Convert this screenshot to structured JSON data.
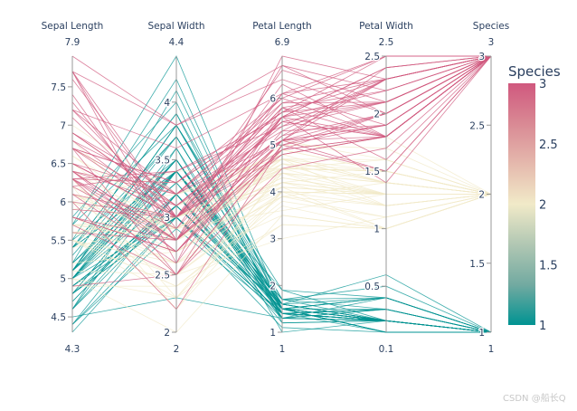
{
  "chart_data": {
    "type": "parallel_coordinates",
    "colorscale_name": "tealrose",
    "colorscale": [
      "#009392",
      "#72aaa1",
      "#b1c7b3",
      "#f1eac8",
      "#e5b9ad",
      "#d98994",
      "#d0587e"
    ],
    "color_by": "Species",
    "colorbar": {
      "title": "Species",
      "range": [
        1,
        3
      ],
      "ticks": [
        1,
        1.5,
        2,
        2.5,
        3
      ]
    },
    "dimensions": [
      {
        "label": "Sepal Length",
        "range": [
          4.3,
          7.9
        ],
        "ticks": [
          4.5,
          5,
          5.5,
          6,
          6.5,
          7,
          7.5
        ],
        "min_label": "4.3",
        "max_label": "7.9"
      },
      {
        "label": "Sepal Width",
        "range": [
          2,
          4.4
        ],
        "ticks": [
          2,
          2.5,
          3,
          3.5,
          4
        ],
        "min_label": "2",
        "max_label": "4.4"
      },
      {
        "label": "Petal Length",
        "range": [
          1,
          6.9
        ],
        "ticks": [
          1,
          2,
          3,
          4,
          5,
          6
        ],
        "min_label": "1",
        "max_label": "6.9"
      },
      {
        "label": "Petal Width",
        "range": [
          0.1,
          2.5
        ],
        "ticks": [
          0.5,
          1,
          1.5,
          2,
          2.5
        ],
        "min_label": "0.1",
        "max_label": "2.5"
      },
      {
        "label": "Species",
        "range": [
          1,
          3
        ],
        "ticks": [
          1,
          1.5,
          2,
          2.5,
          3
        ],
        "min_label": "1",
        "max_label": "3"
      }
    ],
    "rows": [
      [
        5.1,
        3.5,
        1.4,
        0.2,
        1
      ],
      [
        4.9,
        3.0,
        1.4,
        0.2,
        1
      ],
      [
        4.7,
        3.2,
        1.3,
        0.2,
        1
      ],
      [
        4.6,
        3.1,
        1.5,
        0.2,
        1
      ],
      [
        5.0,
        3.6,
        1.4,
        0.2,
        1
      ],
      [
        5.4,
        3.9,
        1.7,
        0.4,
        1
      ],
      [
        4.6,
        3.4,
        1.4,
        0.3,
        1
      ],
      [
        5.0,
        3.4,
        1.5,
        0.2,
        1
      ],
      [
        4.4,
        2.9,
        1.4,
        0.2,
        1
      ],
      [
        4.9,
        3.1,
        1.5,
        0.1,
        1
      ],
      [
        5.4,
        3.7,
        1.5,
        0.2,
        1
      ],
      [
        4.8,
        3.4,
        1.6,
        0.2,
        1
      ],
      [
        4.8,
        3.0,
        1.4,
        0.1,
        1
      ],
      [
        4.3,
        3.0,
        1.1,
        0.1,
        1
      ],
      [
        5.8,
        4.0,
        1.2,
        0.2,
        1
      ],
      [
        5.7,
        4.4,
        1.5,
        0.4,
        1
      ],
      [
        5.4,
        3.9,
        1.3,
        0.4,
        1
      ],
      [
        5.1,
        3.5,
        1.4,
        0.3,
        1
      ],
      [
        5.7,
        3.8,
        1.7,
        0.3,
        1
      ],
      [
        5.1,
        3.8,
        1.5,
        0.3,
        1
      ],
      [
        5.4,
        3.4,
        1.7,
        0.2,
        1
      ],
      [
        5.1,
        3.7,
        1.5,
        0.4,
        1
      ],
      [
        4.6,
        3.6,
        1.0,
        0.2,
        1
      ],
      [
        5.1,
        3.3,
        1.7,
        0.5,
        1
      ],
      [
        4.8,
        3.4,
        1.9,
        0.2,
        1
      ],
      [
        5.0,
        3.0,
        1.6,
        0.2,
        1
      ],
      [
        5.0,
        3.4,
        1.6,
        0.4,
        1
      ],
      [
        5.2,
        3.5,
        1.5,
        0.2,
        1
      ],
      [
        5.2,
        3.4,
        1.4,
        0.2,
        1
      ],
      [
        4.7,
        3.2,
        1.6,
        0.2,
        1
      ],
      [
        4.8,
        3.1,
        1.6,
        0.2,
        1
      ],
      [
        5.4,
        3.4,
        1.5,
        0.4,
        1
      ],
      [
        5.2,
        4.1,
        1.5,
        0.1,
        1
      ],
      [
        5.5,
        4.2,
        1.4,
        0.2,
        1
      ],
      [
        4.9,
        3.1,
        1.5,
        0.1,
        1
      ],
      [
        5.0,
        3.2,
        1.2,
        0.2,
        1
      ],
      [
        5.5,
        3.5,
        1.3,
        0.2,
        1
      ],
      [
        4.9,
        3.1,
        1.5,
        0.1,
        1
      ],
      [
        4.4,
        3.0,
        1.3,
        0.2,
        1
      ],
      [
        5.1,
        3.4,
        1.5,
        0.2,
        1
      ],
      [
        5.0,
        3.5,
        1.3,
        0.3,
        1
      ],
      [
        4.5,
        2.3,
        1.3,
        0.3,
        1
      ],
      [
        4.4,
        3.2,
        1.3,
        0.2,
        1
      ],
      [
        5.0,
        3.5,
        1.6,
        0.6,
        1
      ],
      [
        5.1,
        3.8,
        1.9,
        0.4,
        1
      ],
      [
        4.8,
        3.0,
        1.4,
        0.3,
        1
      ],
      [
        5.1,
        3.8,
        1.6,
        0.2,
        1
      ],
      [
        4.6,
        3.2,
        1.4,
        0.2,
        1
      ],
      [
        5.3,
        3.7,
        1.5,
        0.2,
        1
      ],
      [
        5.0,
        3.3,
        1.4,
        0.2,
        1
      ],
      [
        7.0,
        3.2,
        4.7,
        1.4,
        2
      ],
      [
        6.4,
        3.2,
        4.5,
        1.5,
        2
      ],
      [
        6.9,
        3.1,
        4.9,
        1.5,
        2
      ],
      [
        5.5,
        2.3,
        4.0,
        1.3,
        2
      ],
      [
        6.5,
        2.8,
        4.6,
        1.5,
        2
      ],
      [
        5.7,
        2.8,
        4.5,
        1.3,
        2
      ],
      [
        6.3,
        3.3,
        4.7,
        1.6,
        2
      ],
      [
        4.9,
        2.4,
        3.3,
        1.0,
        2
      ],
      [
        6.6,
        2.9,
        4.6,
        1.3,
        2
      ],
      [
        5.2,
        2.7,
        3.9,
        1.4,
        2
      ],
      [
        5.0,
        2.0,
        3.5,
        1.0,
        2
      ],
      [
        5.9,
        3.0,
        4.2,
        1.5,
        2
      ],
      [
        6.0,
        2.2,
        4.0,
        1.0,
        2
      ],
      [
        6.1,
        2.9,
        4.7,
        1.4,
        2
      ],
      [
        5.6,
        2.9,
        3.6,
        1.3,
        2
      ],
      [
        6.7,
        3.1,
        4.4,
        1.4,
        2
      ],
      [
        5.6,
        3.0,
        4.5,
        1.5,
        2
      ],
      [
        5.8,
        2.7,
        4.1,
        1.0,
        2
      ],
      [
        6.2,
        2.2,
        4.5,
        1.5,
        2
      ],
      [
        5.6,
        2.5,
        3.9,
        1.1,
        2
      ],
      [
        5.9,
        3.2,
        4.8,
        1.8,
        2
      ],
      [
        6.1,
        2.8,
        4.0,
        1.3,
        2
      ],
      [
        6.3,
        2.5,
        4.9,
        1.5,
        2
      ],
      [
        6.1,
        2.8,
        4.7,
        1.2,
        2
      ],
      [
        6.4,
        2.9,
        4.3,
        1.3,
        2
      ],
      [
        6.6,
        3.0,
        4.4,
        1.4,
        2
      ],
      [
        6.8,
        2.8,
        4.8,
        1.4,
        2
      ],
      [
        6.7,
        3.0,
        5.0,
        1.7,
        2
      ],
      [
        6.0,
        2.9,
        4.5,
        1.5,
        2
      ],
      [
        5.7,
        2.6,
        3.5,
        1.0,
        2
      ],
      [
        5.5,
        2.4,
        3.8,
        1.1,
        2
      ],
      [
        5.5,
        2.4,
        3.7,
        1.0,
        2
      ],
      [
        5.8,
        2.7,
        3.9,
        1.2,
        2
      ],
      [
        6.0,
        2.7,
        5.1,
        1.6,
        2
      ],
      [
        5.4,
        3.0,
        4.5,
        1.5,
        2
      ],
      [
        6.0,
        3.4,
        4.5,
        1.6,
        2
      ],
      [
        6.7,
        3.1,
        4.7,
        1.5,
        2
      ],
      [
        6.3,
        2.3,
        4.4,
        1.3,
        2
      ],
      [
        5.6,
        3.0,
        4.1,
        1.3,
        2
      ],
      [
        5.5,
        2.5,
        4.0,
        1.3,
        2
      ],
      [
        5.5,
        2.6,
        4.4,
        1.2,
        2
      ],
      [
        6.1,
        3.0,
        4.6,
        1.4,
        2
      ],
      [
        5.8,
        2.6,
        4.0,
        1.2,
        2
      ],
      [
        5.0,
        2.3,
        3.3,
        1.0,
        2
      ],
      [
        5.6,
        2.7,
        4.2,
        1.3,
        2
      ],
      [
        5.7,
        3.0,
        4.2,
        1.2,
        2
      ],
      [
        5.7,
        2.9,
        4.2,
        1.3,
        2
      ],
      [
        6.2,
        2.9,
        4.3,
        1.3,
        2
      ],
      [
        5.1,
        2.5,
        3.0,
        1.1,
        2
      ],
      [
        5.7,
        2.8,
        4.1,
        1.3,
        2
      ],
      [
        6.3,
        3.3,
        6.0,
        2.5,
        3
      ],
      [
        5.8,
        2.7,
        5.1,
        1.9,
        3
      ],
      [
        7.1,
        3.0,
        5.9,
        2.1,
        3
      ],
      [
        6.3,
        2.9,
        5.6,
        1.8,
        3
      ],
      [
        6.5,
        3.0,
        5.8,
        2.2,
        3
      ],
      [
        7.6,
        3.0,
        6.6,
        2.1,
        3
      ],
      [
        4.9,
        2.5,
        4.5,
        1.7,
        3
      ],
      [
        7.3,
        2.9,
        6.3,
        1.8,
        3
      ],
      [
        6.7,
        2.5,
        5.8,
        1.8,
        3
      ],
      [
        7.2,
        3.6,
        6.1,
        2.5,
        3
      ],
      [
        6.5,
        3.2,
        5.1,
        2.0,
        3
      ],
      [
        6.4,
        2.7,
        5.3,
        1.9,
        3
      ],
      [
        6.8,
        3.0,
        5.5,
        2.1,
        3
      ],
      [
        5.7,
        2.5,
        5.0,
        2.0,
        3
      ],
      [
        5.8,
        2.8,
        5.1,
        2.4,
        3
      ],
      [
        6.4,
        3.2,
        5.3,
        2.3,
        3
      ],
      [
        6.5,
        3.0,
        5.5,
        1.8,
        3
      ],
      [
        7.7,
        3.8,
        6.7,
        2.2,
        3
      ],
      [
        7.7,
        2.6,
        6.9,
        2.3,
        3
      ],
      [
        6.0,
        2.2,
        5.0,
        1.5,
        3
      ],
      [
        6.9,
        3.2,
        5.7,
        2.3,
        3
      ],
      [
        5.6,
        2.8,
        4.9,
        2.0,
        3
      ],
      [
        7.7,
        2.8,
        6.7,
        2.0,
        3
      ],
      [
        6.3,
        2.7,
        4.9,
        1.8,
        3
      ],
      [
        6.7,
        3.3,
        5.7,
        2.1,
        3
      ],
      [
        7.2,
        3.2,
        6.0,
        1.8,
        3
      ],
      [
        6.2,
        2.8,
        4.8,
        1.8,
        3
      ],
      [
        6.1,
        3.0,
        4.9,
        1.8,
        3
      ],
      [
        6.4,
        2.8,
        5.6,
        2.1,
        3
      ],
      [
        7.2,
        3.0,
        5.8,
        1.6,
        3
      ],
      [
        7.4,
        2.8,
        6.1,
        1.9,
        3
      ],
      [
        7.9,
        3.8,
        6.4,
        2.0,
        3
      ],
      [
        6.4,
        2.8,
        5.6,
        2.2,
        3
      ],
      [
        6.3,
        2.8,
        5.1,
        1.5,
        3
      ],
      [
        6.1,
        2.6,
        5.6,
        1.4,
        3
      ],
      [
        7.7,
        3.0,
        6.1,
        2.3,
        3
      ],
      [
        6.3,
        3.4,
        5.6,
        2.4,
        3
      ],
      [
        6.4,
        3.1,
        5.5,
        1.8,
        3
      ],
      [
        6.0,
        3.0,
        4.8,
        1.8,
        3
      ],
      [
        6.9,
        3.1,
        5.4,
        2.1,
        3
      ],
      [
        6.7,
        3.1,
        5.6,
        2.4,
        3
      ],
      [
        6.9,
        3.1,
        5.1,
        2.3,
        3
      ],
      [
        5.8,
        2.7,
        5.1,
        1.9,
        3
      ],
      [
        6.8,
        3.2,
        5.9,
        2.3,
        3
      ],
      [
        6.7,
        3.3,
        5.7,
        2.5,
        3
      ],
      [
        6.7,
        3.0,
        5.2,
        2.3,
        3
      ],
      [
        6.3,
        2.5,
        5.0,
        1.9,
        3
      ],
      [
        6.5,
        3.0,
        5.2,
        2.0,
        3
      ],
      [
        6.2,
        3.4,
        5.4,
        2.3,
        3
      ],
      [
        5.9,
        3.0,
        5.1,
        1.8,
        3
      ]
    ]
  },
  "watermark": "CSDN @船长Q"
}
